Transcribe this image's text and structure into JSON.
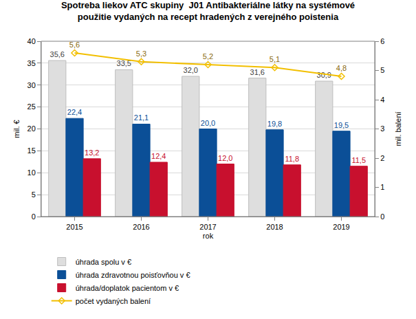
{
  "chart_data": {
    "type": "bar",
    "title": "Spotreba liekov ATC skupiny  J01 Antibakteriálne látky na systémové použitie vydaných na recept hradených z verejného poistenia",
    "x_label": "rok",
    "y_label": "mil. €",
    "y2_label": "mil. balení",
    "categories": [
      "2015",
      "2016",
      "2017",
      "2018",
      "2019"
    ],
    "series": [
      {
        "name": "úhrada spolu v €",
        "color": "#dedede",
        "values": [
          35.6,
          33.5,
          32.0,
          31.6,
          30.9
        ],
        "value_labels": [
          "35,6",
          "33,5",
          "32,0",
          "31,6",
          "30,9"
        ]
      },
      {
        "name": "úhrada zdravotnou poisťovňou v €",
        "color": "#0b4f97",
        "values": [
          22.4,
          21.1,
          20.0,
          19.8,
          19.5
        ],
        "value_labels": [
          "22,4",
          "21,1",
          "20,0",
          "19,8",
          "19,5"
        ]
      },
      {
        "name": "úhrada/doplatok pacientom v €",
        "color": "#c8102e",
        "values": [
          13.2,
          12.4,
          12.0,
          11.8,
          11.5
        ],
        "value_labels": [
          "13,2",
          "12,4",
          "12,0",
          "11,8",
          "11,5"
        ]
      },
      {
        "name": "počet vydaných balení",
        "color": "#f2bf00",
        "type": "line",
        "axis": "y2",
        "marker": "diamond",
        "values": [
          5.6,
          5.3,
          5.2,
          5.1,
          4.8
        ],
        "value_labels": [
          "5,6",
          "5,3",
          "5,2",
          "5,1",
          "4,8"
        ]
      }
    ],
    "ylim": [
      0,
      40
    ],
    "yticks": [
      0,
      5,
      10,
      15,
      20,
      25,
      30,
      35,
      40
    ],
    "y2lim": [
      0,
      6
    ],
    "y2ticks": [
      0,
      1,
      2,
      3,
      4,
      5,
      6
    ],
    "grid": true,
    "legend": "bottom",
    "data_labels": true
  }
}
